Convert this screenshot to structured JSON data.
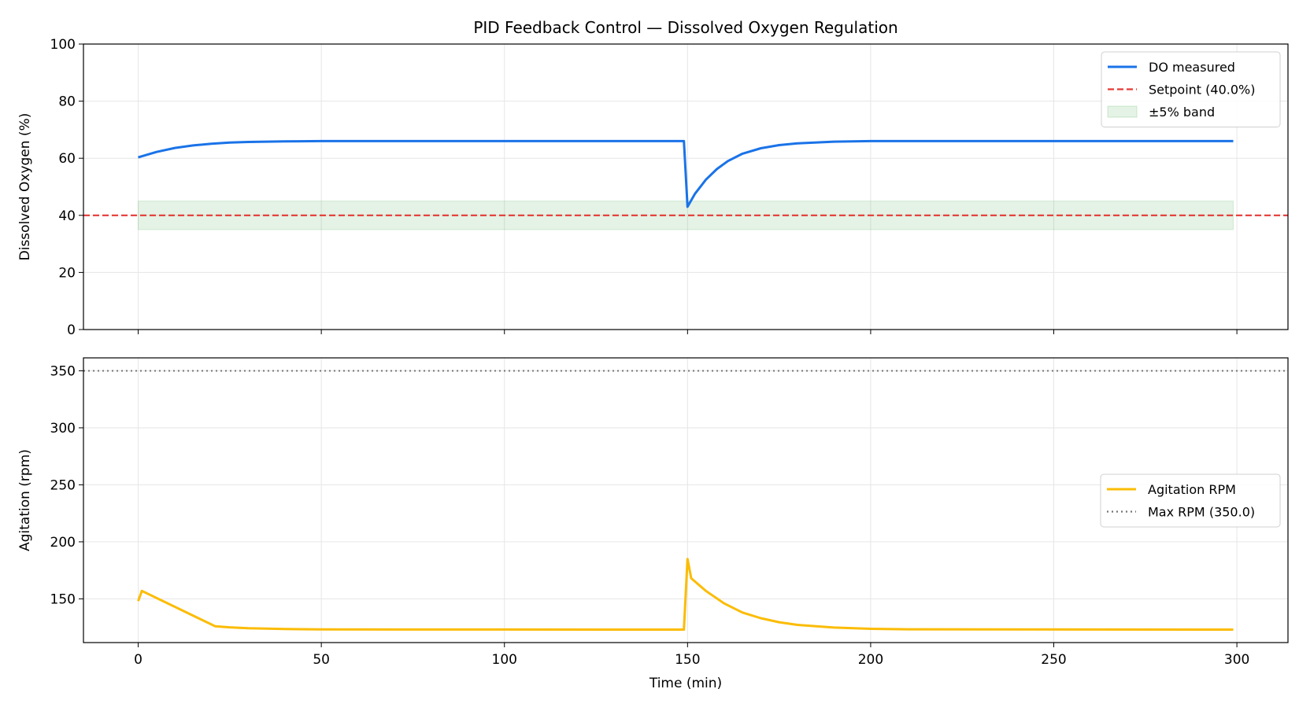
{
  "chart_data": [
    {
      "type": "line",
      "title": "PID Feedback Control — Dissolved Oxygen Regulation",
      "xlabel": "",
      "ylabel": "Dissolved Oxygen (%)",
      "xlim": [
        -14.95,
        313.95
      ],
      "ylim": [
        0,
        100
      ],
      "xticks": [
        0,
        50,
        100,
        150,
        200,
        250,
        300
      ],
      "yticks": [
        0,
        20,
        40,
        60,
        80,
        100
      ],
      "grid": true,
      "legend_placement": "top-right",
      "series": [
        {
          "name": "DO measured",
          "color": "#1a73e8",
          "style": "solid",
          "x": [
            0,
            5,
            10,
            15,
            20,
            25,
            30,
            40,
            50,
            149,
            150,
            152,
            155,
            158,
            161,
            165,
            170,
            175,
            180,
            190,
            200,
            299
          ],
          "y": [
            60.3,
            62.2,
            63.6,
            64.5,
            65.1,
            65.5,
            65.7,
            65.9,
            66.0,
            66.0,
            43.0,
            47.5,
            52.5,
            56.2,
            59.0,
            61.6,
            63.5,
            64.6,
            65.2,
            65.8,
            66.0,
            66.0
          ]
        },
        {
          "name": "Setpoint (40.0%)",
          "color": "#e53935",
          "style": "dashed",
          "y_const": 40.0
        },
        {
          "name": "±5% band",
          "color": "#4caf50",
          "style": "band",
          "y_range": [
            35.0,
            45.0
          ],
          "x_range": [
            0,
            299
          ]
        }
      ]
    },
    {
      "type": "line",
      "xlabel": "Time (min)",
      "ylabel": "Agitation (rpm)",
      "xlim": [
        -14.95,
        313.95
      ],
      "ylim": [
        111.65,
        361.35
      ],
      "xticks": [
        0,
        50,
        100,
        150,
        200,
        250,
        300
      ],
      "yticks": [
        150,
        200,
        250,
        300,
        350
      ],
      "grid": true,
      "legend_placement": "center-right",
      "series": [
        {
          "name": "Agitation RPM",
          "color": "#fbbc04",
          "style": "solid",
          "x": [
            0,
            1,
            21,
            25,
            30,
            40,
            50,
            149,
            150,
            151,
            155,
            160,
            165,
            170,
            175,
            180,
            190,
            200,
            210,
            299
          ],
          "y": [
            148,
            157,
            126,
            125,
            124.2,
            123.5,
            123.2,
            123,
            185,
            168,
            157,
            146,
            138,
            133,
            129.5,
            127.2,
            124.8,
            123.7,
            123.3,
            123
          ]
        },
        {
          "name": "Max RPM (350.0)",
          "color": "#757575",
          "style": "dotted",
          "y_const": 350.0
        }
      ]
    }
  ]
}
